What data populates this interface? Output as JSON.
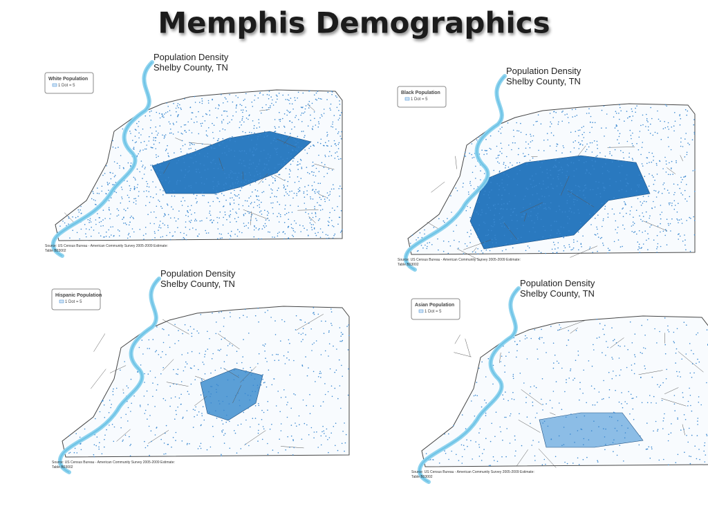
{
  "header": {
    "title": "Memphis Demographics"
  },
  "maps": [
    {
      "title": "Population Density",
      "subtitle": "Shelby County, TN",
      "legend_title": "White Population",
      "legend_key": "1 Dot = 5",
      "source": "Source: US Census Bureau - American Community Survey 2005-2009 Estimate:",
      "source_table": "Table B03002"
    },
    {
      "title": "Population Density",
      "subtitle": "Shelby County, TN",
      "legend_title": "Black Population",
      "legend_key": "1 Dot = 5",
      "source": "Source: US Census Bureau - American Community Survey 2005-2009 Estimate:",
      "source_table": "Table B03002"
    },
    {
      "title": "Population Density",
      "subtitle": "Shelby County, TN",
      "legend_title": "Hispanic Population",
      "legend_key": "1 Dot = 5",
      "source": "Source: US Census Bureau - American Community Survey 2005-2009 Estimate:",
      "source_table": "Table B03002"
    },
    {
      "title": "Population Density",
      "subtitle": "Shelby County, TN",
      "legend_title": "Asian Population",
      "legend_key": "1 Dot = 5",
      "source": "Source: US Census Bureau - American Community Survey 2005-2009 Estimate:",
      "source_table": "Table B03002"
    }
  ]
}
